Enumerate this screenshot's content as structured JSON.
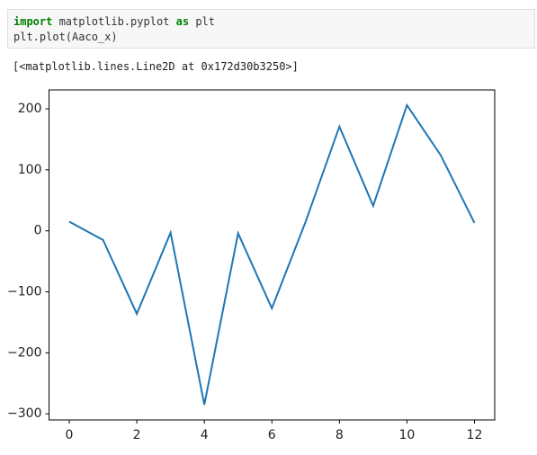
{
  "cell": {
    "line1": [
      "import",
      " matplotlib.pyplot ",
      "as",
      " plt"
    ],
    "line2": "plt.plot(Aaco_x)"
  },
  "output": "[<matplotlib.lines.Line2D at 0x172d30b3250>]",
  "chart_data": {
    "type": "line",
    "x": [
      0,
      1,
      2,
      3,
      4,
      5,
      6,
      7,
      8,
      9,
      10,
      11,
      12
    ],
    "series": [
      {
        "color": "#1f77b4",
        "values": [
          15,
          -15,
          -136,
          -3,
          -285,
          -4,
          -127,
          15,
          171,
          41,
          206,
          124,
          13
        ]
      }
    ],
    "xlim": [
      -0.6,
      12.6
    ],
    "xticks": [
      0,
      2,
      4,
      6,
      8,
      10,
      12
    ],
    "ylim": [
      -310,
      231
    ],
    "yticks": [
      {
        "value": -300,
        "label": "−300"
      },
      {
        "value": -200,
        "label": "−200"
      },
      {
        "value": -100,
        "label": "−100"
      },
      0,
      100,
      200
    ]
  }
}
